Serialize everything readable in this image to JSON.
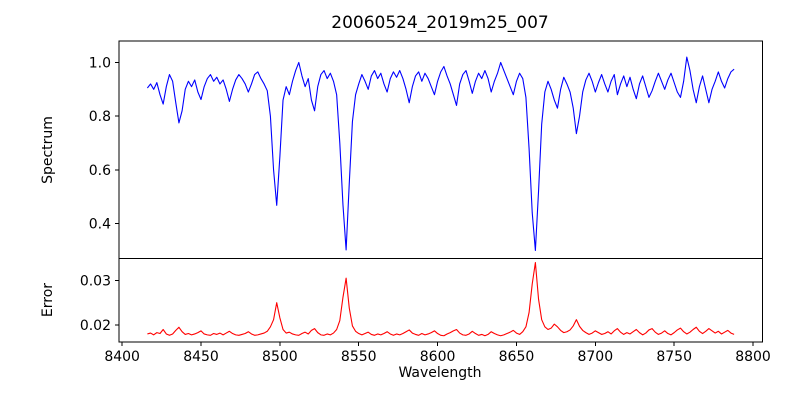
{
  "chart_data": {
    "type": "line",
    "title": "20060524_2019m25_007",
    "xlabel": "Wavelength",
    "grid": false,
    "background": "#ffffff",
    "axis_color": "#000000",
    "xlim": [
      8398,
      8806
    ],
    "x_ticks": [
      8400,
      8450,
      8500,
      8550,
      8600,
      8650,
      8700,
      8750,
      8800
    ],
    "x_tick_labels": [
      "8400",
      "8450",
      "8500",
      "8550",
      "8600",
      "8650",
      "8700",
      "8750",
      "8800"
    ],
    "x_start": 8416,
    "x_step": 2,
    "n_points": 187,
    "panels": [
      {
        "name": "spectrum",
        "ylabel": "Spectrum",
        "line_color": "#0000ff",
        "ylim": [
          0.27,
          1.08
        ],
        "y_ticks": [
          0.4,
          0.6,
          0.8,
          1.0
        ],
        "y_tick_labels": [
          "0.4",
          "0.6",
          "0.8",
          "1.0"
        ],
        "values": [
          0.905,
          0.92,
          0.9,
          0.925,
          0.88,
          0.845,
          0.91,
          0.955,
          0.93,
          0.85,
          0.775,
          0.82,
          0.9,
          0.93,
          0.91,
          0.935,
          0.89,
          0.862,
          0.91,
          0.94,
          0.955,
          0.93,
          0.945,
          0.92,
          0.935,
          0.9,
          0.855,
          0.9,
          0.935,
          0.955,
          0.94,
          0.92,
          0.89,
          0.92,
          0.955,
          0.965,
          0.94,
          0.92,
          0.895,
          0.8,
          0.6,
          0.468,
          0.65,
          0.86,
          0.91,
          0.88,
          0.93,
          0.97,
          1.0,
          0.95,
          0.91,
          0.94,
          0.86,
          0.82,
          0.91,
          0.955,
          0.97,
          0.94,
          0.96,
          0.93,
          0.88,
          0.7,
          0.47,
          0.302,
          0.55,
          0.78,
          0.88,
          0.92,
          0.955,
          0.93,
          0.9,
          0.95,
          0.97,
          0.94,
          0.96,
          0.92,
          0.89,
          0.94,
          0.965,
          0.945,
          0.97,
          0.94,
          0.9,
          0.85,
          0.91,
          0.95,
          0.965,
          0.93,
          0.96,
          0.94,
          0.91,
          0.88,
          0.93,
          0.965,
          0.985,
          0.95,
          0.92,
          0.88,
          0.84,
          0.92,
          0.955,
          0.97,
          0.93,
          0.885,
          0.93,
          0.96,
          0.94,
          0.97,
          0.94,
          0.89,
          0.93,
          0.96,
          1.0,
          0.97,
          0.94,
          0.91,
          0.88,
          0.93,
          0.96,
          0.94,
          0.87,
          0.68,
          0.44,
          0.3,
          0.52,
          0.77,
          0.89,
          0.93,
          0.9,
          0.86,
          0.83,
          0.9,
          0.945,
          0.92,
          0.89,
          0.83,
          0.735,
          0.8,
          0.89,
          0.935,
          0.96,
          0.93,
          0.89,
          0.925,
          0.955,
          0.92,
          0.89,
          0.93,
          0.955,
          0.88,
          0.92,
          0.95,
          0.91,
          0.945,
          0.9,
          0.865,
          0.92,
          0.95,
          0.91,
          0.87,
          0.895,
          0.93,
          0.96,
          0.93,
          0.9,
          0.935,
          0.96,
          0.925,
          0.89,
          0.87,
          0.93,
          1.02,
          0.97,
          0.9,
          0.85,
          0.91,
          0.95,
          0.9,
          0.85,
          0.9,
          0.93,
          0.965,
          0.93,
          0.905,
          0.94,
          0.965,
          0.975
        ]
      },
      {
        "name": "error",
        "ylabel": "Error",
        "line_color": "#ff0000",
        "ylim": [
          0.0162,
          0.0349
        ],
        "y_ticks": [
          0.02,
          0.03
        ],
        "y_tick_labels": [
          "0.02",
          "0.03"
        ],
        "values": [
          0.018,
          0.0182,
          0.0178,
          0.0183,
          0.0181,
          0.019,
          0.018,
          0.0177,
          0.018,
          0.0188,
          0.0195,
          0.0185,
          0.0179,
          0.0181,
          0.0178,
          0.018,
          0.0183,
          0.0187,
          0.018,
          0.0178,
          0.0177,
          0.0181,
          0.0179,
          0.0182,
          0.0178,
          0.0182,
          0.0186,
          0.0181,
          0.0178,
          0.0177,
          0.0179,
          0.0181,
          0.0185,
          0.018,
          0.0177,
          0.0178,
          0.018,
          0.0182,
          0.0186,
          0.0196,
          0.0212,
          0.025,
          0.0216,
          0.019,
          0.0182,
          0.0184,
          0.018,
          0.0178,
          0.0177,
          0.0181,
          0.0184,
          0.018,
          0.0188,
          0.0192,
          0.0183,
          0.0178,
          0.0177,
          0.018,
          0.0178,
          0.0182,
          0.019,
          0.021,
          0.0262,
          0.0305,
          0.0238,
          0.0198,
          0.0186,
          0.0181,
          0.0178,
          0.0181,
          0.0184,
          0.0179,
          0.0177,
          0.018,
          0.0178,
          0.0181,
          0.0185,
          0.018,
          0.0177,
          0.018,
          0.0178,
          0.0181,
          0.0185,
          0.0189,
          0.0182,
          0.0179,
          0.0177,
          0.0181,
          0.0178,
          0.018,
          0.0183,
          0.0187,
          0.0181,
          0.0177,
          0.0176,
          0.018,
          0.0183,
          0.0187,
          0.019,
          0.0182,
          0.0178,
          0.0177,
          0.018,
          0.0186,
          0.0181,
          0.0177,
          0.0179,
          0.0176,
          0.0179,
          0.0185,
          0.0181,
          0.0178,
          0.0176,
          0.0178,
          0.0181,
          0.0184,
          0.0188,
          0.0182,
          0.0179,
          0.0185,
          0.0196,
          0.0228,
          0.0292,
          0.034,
          0.0258,
          0.0212,
          0.0196,
          0.019,
          0.0193,
          0.0202,
          0.0196,
          0.0188,
          0.0183,
          0.0185,
          0.0189,
          0.0198,
          0.0212,
          0.0197,
          0.0188,
          0.0183,
          0.0179,
          0.0182,
          0.0187,
          0.0183,
          0.0179,
          0.0181,
          0.0185,
          0.018,
          0.0187,
          0.0192,
          0.0184,
          0.0179,
          0.0183,
          0.018,
          0.0185,
          0.019,
          0.0183,
          0.0178,
          0.0182,
          0.0189,
          0.0192,
          0.0184,
          0.0179,
          0.0182,
          0.0187,
          0.0181,
          0.0178,
          0.0183,
          0.0189,
          0.0193,
          0.0185,
          0.018,
          0.0184,
          0.019,
          0.0195,
          0.0186,
          0.0181,
          0.0186,
          0.0192,
          0.0187,
          0.0182,
          0.0186,
          0.018,
          0.0184,
          0.0188,
          0.0182,
          0.0179
        ]
      }
    ]
  }
}
